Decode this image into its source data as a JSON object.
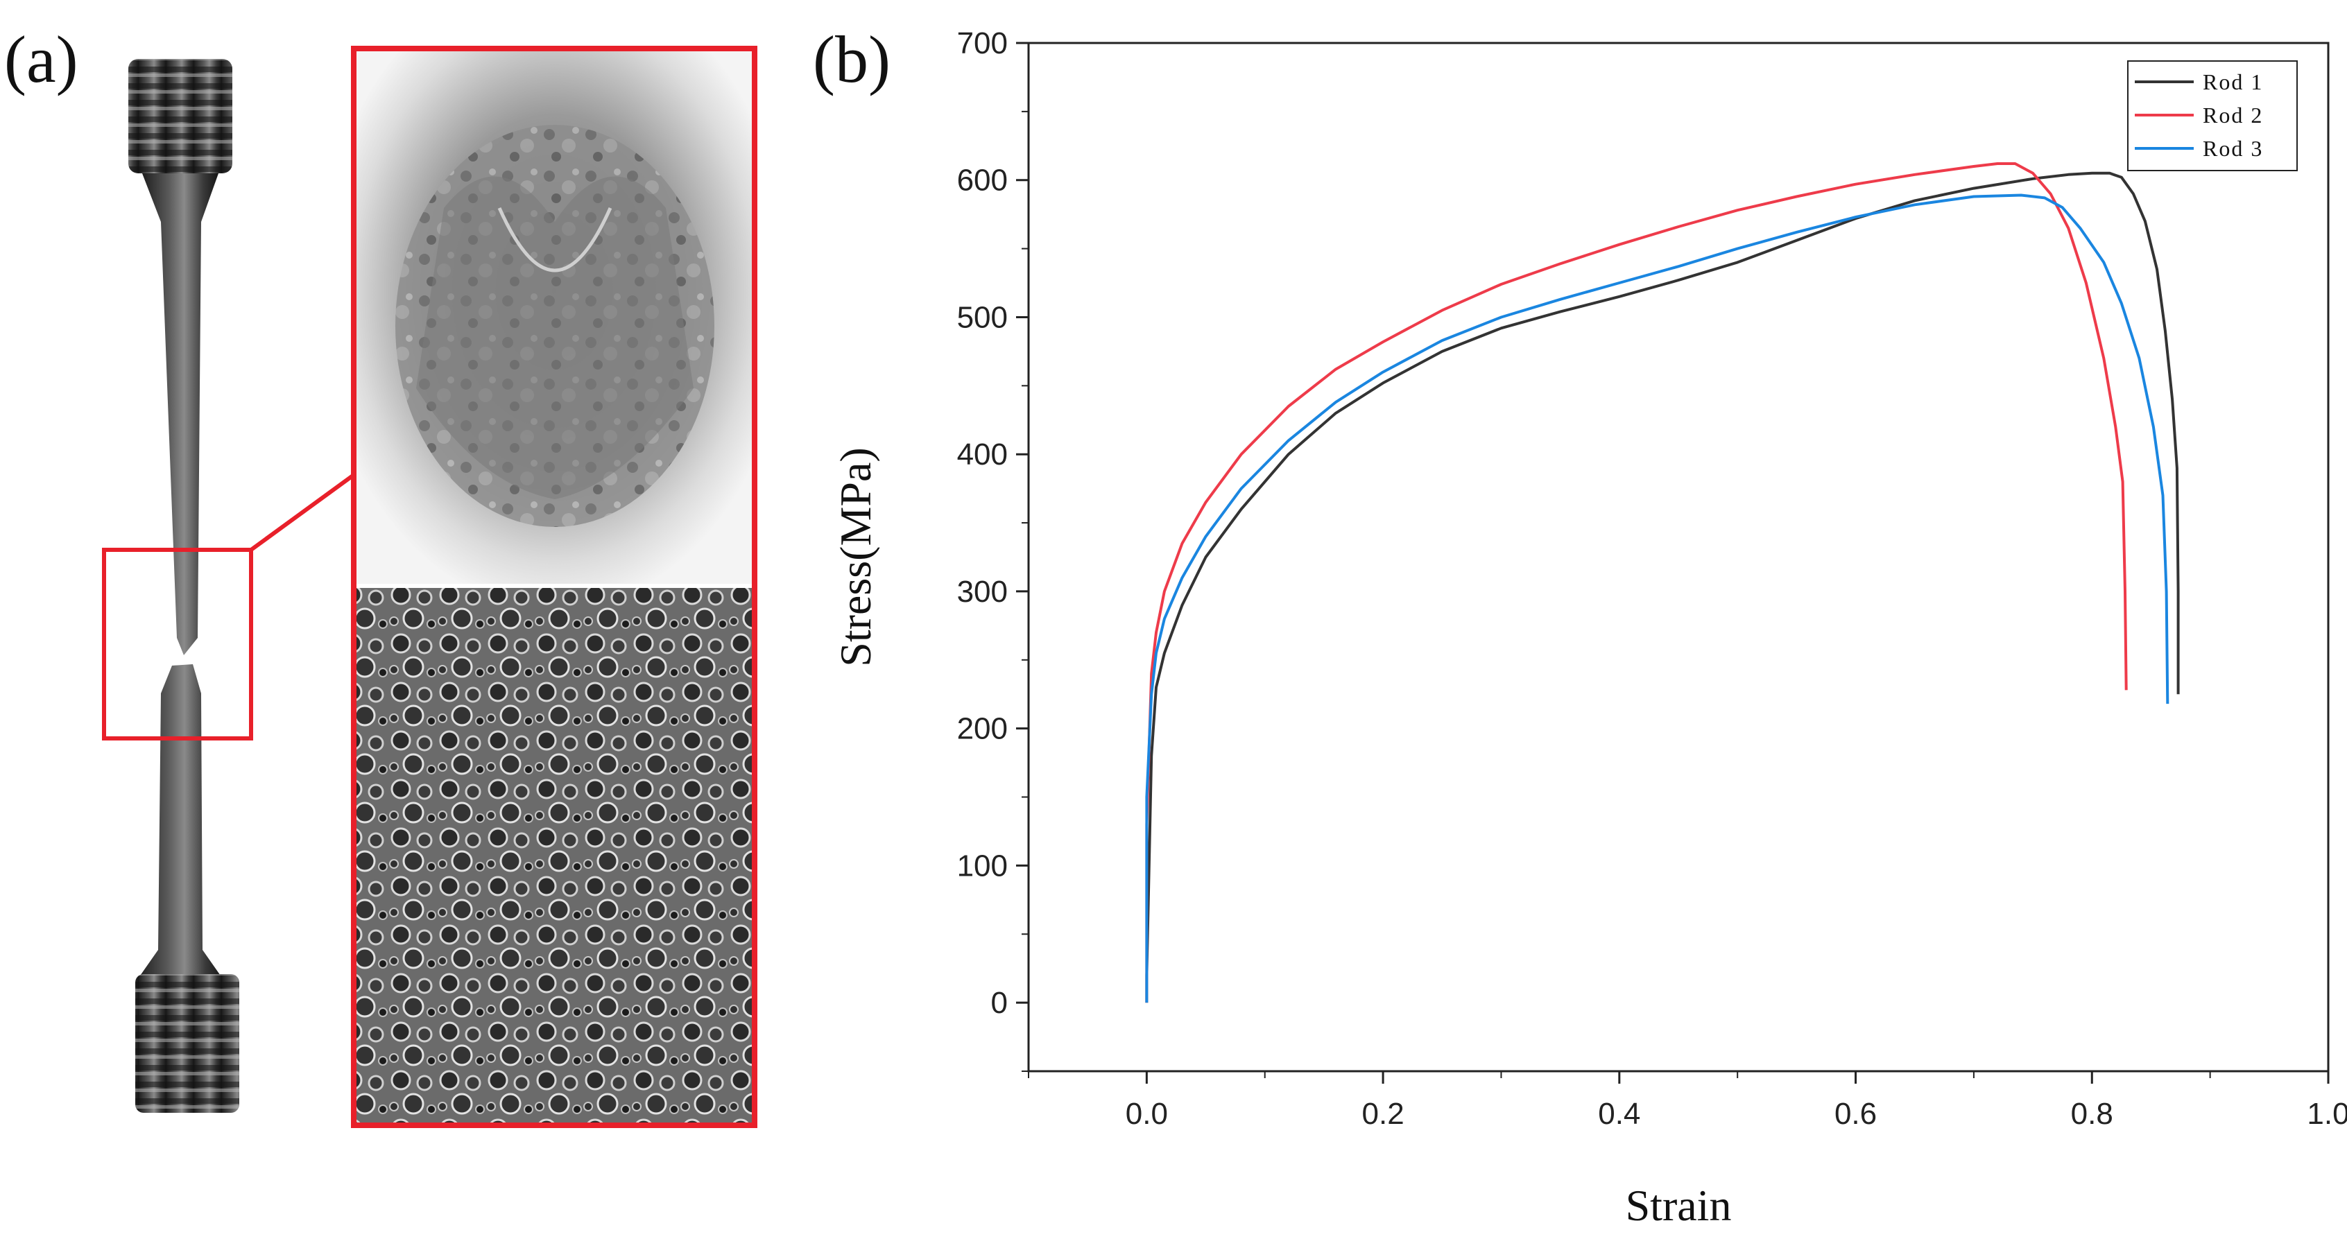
{
  "panels": {
    "a_label": "(a)",
    "b_label": "(b)"
  },
  "photo": {
    "frame_color": "#e8202a",
    "rod_color": "#3a3a3a"
  },
  "chart_data": {
    "type": "line",
    "title": "",
    "xlabel": "Strain",
    "ylabel": "Stress(MPa)",
    "xlim": [
      -0.1,
      1.0
    ],
    "ylim": [
      -50,
      700
    ],
    "xticks": [
      "0.0",
      "0.2",
      "0.4",
      "0.6",
      "0.8",
      "1.0"
    ],
    "yticks": [
      "0",
      "100",
      "200",
      "300",
      "400",
      "500",
      "600",
      "700"
    ],
    "xtick_values": [
      0.0,
      0.2,
      0.4,
      0.6,
      0.8,
      1.0
    ],
    "ytick_values": [
      0,
      100,
      200,
      300,
      400,
      500,
      600,
      700
    ],
    "legend_position": "top-right",
    "series": [
      {
        "name": "Rod 1",
        "color": "#333333",
        "x": [
          0.0,
          0.0,
          0.004,
          0.008,
          0.015,
          0.03,
          0.05,
          0.08,
          0.12,
          0.16,
          0.2,
          0.25,
          0.3,
          0.35,
          0.4,
          0.45,
          0.5,
          0.55,
          0.6,
          0.65,
          0.7,
          0.75,
          0.78,
          0.8,
          0.815,
          0.825,
          0.835,
          0.845,
          0.855,
          0.862,
          0.868,
          0.872,
          0.873,
          0.873
        ],
        "y": [
          0,
          20,
          180,
          230,
          255,
          290,
          325,
          360,
          400,
          430,
          452,
          475,
          492,
          504,
          515,
          527,
          540,
          556,
          572,
          585,
          594,
          601,
          604,
          605,
          605,
          602,
          590,
          570,
          535,
          490,
          440,
          390,
          300,
          225
        ]
      },
      {
        "name": "Rod 2",
        "color": "#ee3b4a",
        "x": [
          0.0,
          0.0,
          0.004,
          0.008,
          0.015,
          0.03,
          0.05,
          0.08,
          0.12,
          0.16,
          0.2,
          0.25,
          0.3,
          0.35,
          0.4,
          0.45,
          0.5,
          0.55,
          0.6,
          0.65,
          0.7,
          0.72,
          0.735,
          0.75,
          0.765,
          0.78,
          0.795,
          0.81,
          0.82,
          0.826,
          0.828,
          0.829
        ],
        "y": [
          0,
          130,
          240,
          270,
          300,
          335,
          365,
          400,
          435,
          462,
          482,
          505,
          524,
          539,
          553,
          566,
          578,
          588,
          597,
          604,
          610,
          612,
          612,
          605,
          590,
          565,
          525,
          470,
          420,
          380,
          300,
          228
        ]
      },
      {
        "name": "Rod 3",
        "color": "#1a86e0",
        "x": [
          0.0,
          0.0,
          0.004,
          0.008,
          0.015,
          0.03,
          0.05,
          0.08,
          0.12,
          0.16,
          0.2,
          0.25,
          0.3,
          0.35,
          0.4,
          0.45,
          0.5,
          0.55,
          0.6,
          0.65,
          0.7,
          0.74,
          0.76,
          0.775,
          0.79,
          0.81,
          0.825,
          0.84,
          0.852,
          0.86,
          0.863,
          0.864
        ],
        "y": [
          0,
          150,
          225,
          255,
          280,
          310,
          340,
          375,
          410,
          438,
          460,
          483,
          500,
          513,
          525,
          537,
          550,
          562,
          573,
          582,
          588,
          589,
          587,
          580,
          565,
          540,
          510,
          470,
          420,
          370,
          300,
          218
        ]
      }
    ]
  }
}
